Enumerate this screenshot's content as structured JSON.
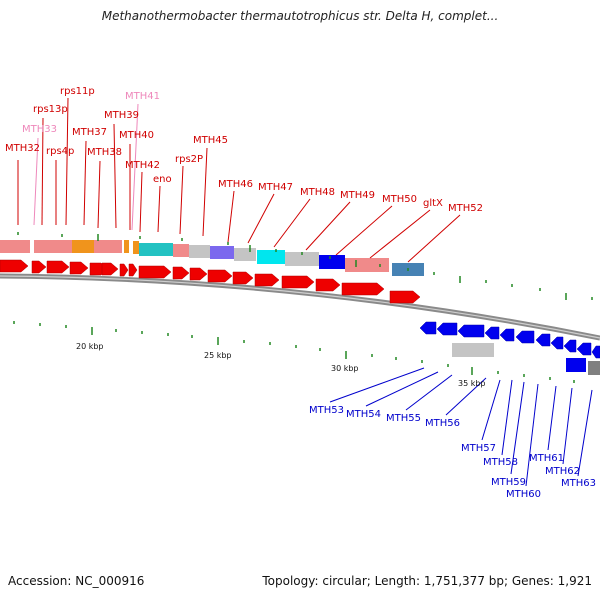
{
  "title": "Methanothermobacter thermautotrophicus str. Delta H, complet...",
  "footer": {
    "accession": "Accession: NC_000916",
    "summary": "Topology: circular; Length: 1,751,377 bp; Genes: 1,921"
  },
  "colors": {
    "forward_label": "#d00000",
    "pseudo_label": "#ee88bb",
    "reverse_label": "#0000cc",
    "forward_gene": "#ee0000",
    "reverse_gene": "#0000ee",
    "backbone": "#7a7a7a",
    "tick": "#228822"
  },
  "scale_labels": [
    "20 kbp",
    "25 kbp",
    "30 kbp",
    "35 kbp"
  ],
  "forward_labels": [
    "MTH32",
    "MTH33",
    "rps13p",
    "rps4p",
    "rps11p",
    "MTH37",
    "MTH38",
    "MTH39",
    "MTH40",
    "MTH41",
    "MTH42",
    "eno",
    "rps2P",
    "MTH45",
    "MTH46",
    "MTH47",
    "MTH48",
    "MTH49",
    "MTH50",
    "gltX",
    "MTH52"
  ],
  "reverse_labels": [
    "MTH53",
    "MTH54",
    "MTH55",
    "MTH56",
    "MTH57",
    "MTH58",
    "MTH59",
    "MTH60",
    "MTH61",
    "MTH62",
    "MTH63"
  ]
}
